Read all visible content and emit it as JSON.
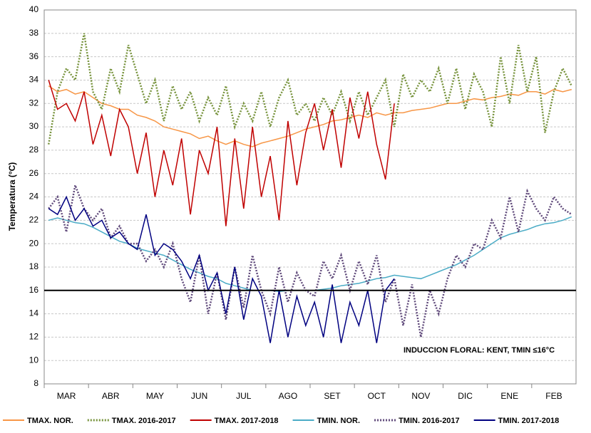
{
  "chart_data": {
    "type": "line",
    "y_label": "Temperatura (°C)",
    "annotation": "INDUCCION FLORAL: KENT, TMIN ≤16°C",
    "hline": 16,
    "categories": [
      null,
      null,
      "MAR",
      null,
      null,
      null,
      null,
      "ABR",
      null,
      null,
      null,
      null,
      "MAY",
      null,
      null,
      null,
      null,
      "JUN",
      null,
      null,
      null,
      null,
      "JUL",
      null,
      null,
      null,
      null,
      "AGO",
      null,
      null,
      null,
      null,
      "SET",
      null,
      null,
      null,
      null,
      "OCT",
      null,
      null,
      null,
      null,
      "NOV",
      null,
      null,
      null,
      null,
      "DIC",
      null,
      null,
      null,
      null,
      "ENE",
      null,
      null,
      null,
      null,
      "FEB",
      null,
      null
    ],
    "ylim": [
      8,
      40
    ],
    "yticks": [
      8,
      10,
      12,
      14,
      16,
      18,
      20,
      22,
      24,
      26,
      28,
      30,
      32,
      34,
      36,
      38,
      40
    ],
    "grid": true,
    "series": [
      {
        "name": "TMAX. NOR.",
        "color": "#f79646",
        "dash": "solid",
        "values": [
          33.5,
          33,
          33.2,
          32.8,
          33,
          32.5,
          32,
          31.8,
          31.5,
          31.5,
          31,
          30.8,
          30.5,
          30,
          29.8,
          29.6,
          29.4,
          29,
          29.2,
          28.8,
          28.5,
          28.8,
          28.5,
          28.3,
          28.6,
          28.8,
          29,
          29.2,
          29.5,
          29.8,
          30,
          30.2,
          30.5,
          30.6,
          30.8,
          31,
          30.8,
          31.2,
          31,
          31.2,
          31.2,
          31.4,
          31.5,
          31.6,
          31.8,
          32,
          32,
          32.2,
          32.4,
          32.3,
          32.5,
          32.6,
          32.8,
          32.7,
          33,
          33,
          32.8,
          33.2,
          33,
          33.2
        ]
      },
      {
        "name": "TMAX. 2016-2017",
        "color": "#77933c",
        "dash": "dotted",
        "values": [
          28.5,
          33,
          35,
          34,
          38,
          33,
          31.5,
          35,
          33,
          37,
          34.5,
          32,
          34,
          30.5,
          33.5,
          31.5,
          33,
          30.5,
          32.5,
          31,
          33.5,
          30,
          32,
          30.5,
          33,
          30,
          32.5,
          34,
          31,
          32,
          30.5,
          32.5,
          31,
          33,
          30.5,
          33,
          31,
          32.5,
          34,
          30,
          34.5,
          32.5,
          34,
          33,
          35,
          32,
          35,
          31.5,
          34.5,
          33,
          30,
          36,
          32,
          37,
          33,
          36,
          29.5,
          33,
          35,
          33.5
        ]
      },
      {
        "name": "TMAX. 2017-2018",
        "color": "#c00000",
        "dash": "solid",
        "values": [
          34,
          31.5,
          32,
          30.5,
          33,
          28.5,
          31,
          27.5,
          31.5,
          30,
          26,
          29.5,
          24,
          28,
          25,
          29,
          22.5,
          28,
          26,
          30,
          21.5,
          29,
          23,
          30,
          24,
          27.5,
          22,
          30.5,
          25,
          29.5,
          32,
          28,
          31.5,
          26.5,
          32.5,
          29,
          33,
          28.5,
          25.5,
          32,
          null,
          null,
          null,
          null,
          null,
          null,
          null,
          null,
          null,
          null,
          null,
          null,
          null,
          null,
          null,
          null,
          null,
          null,
          null,
          null
        ]
      },
      {
        "name": "TMIN. NOR.",
        "color": "#4bacc6",
        "dash": "solid",
        "values": [
          22,
          22.2,
          22,
          21.8,
          21.7,
          21.4,
          21,
          20.6,
          20.2,
          20,
          19.6,
          19.4,
          19.2,
          19,
          18.6,
          18.2,
          17.8,
          17.5,
          17.2,
          17,
          16.6,
          16.4,
          16.2,
          16,
          16,
          16,
          15.9,
          16,
          16,
          16,
          16,
          16.1,
          16.2,
          16.4,
          16.5,
          16.6,
          16.8,
          17,
          17.1,
          17.3,
          17.2,
          17.1,
          17,
          17.3,
          17.6,
          17.9,
          18.2,
          18.6,
          19,
          19.5,
          20,
          20.5,
          20.8,
          21,
          21.2,
          21.5,
          21.7,
          21.8,
          22,
          22.3
        ]
      },
      {
        "name": "TMIN. 2016-2017",
        "color": "#604a7b",
        "dash": "dotted",
        "values": [
          23,
          24,
          21,
          25,
          23,
          22,
          23,
          20.5,
          21.5,
          20,
          20,
          18.5,
          19.5,
          18,
          20,
          17,
          15,
          19,
          14,
          17.5,
          13.5,
          18,
          14.5,
          19,
          16,
          14,
          18,
          15,
          17.5,
          16,
          15.5,
          18.5,
          17,
          19,
          16,
          18.5,
          16.5,
          19,
          15,
          17,
          13,
          16.5,
          12,
          16,
          14,
          17,
          19,
          18,
          20,
          19.5,
          22,
          20.5,
          24,
          21,
          24.5,
          23,
          22,
          24,
          23,
          22.5
        ]
      },
      {
        "name": "TMIN. 2017-2018",
        "color": "#000080",
        "dash": "solid",
        "values": [
          23,
          22.5,
          24,
          22,
          23,
          21.5,
          22,
          20.5,
          21,
          20,
          19.5,
          22.5,
          19,
          20,
          19.5,
          18.5,
          17,
          19,
          16,
          17.5,
          14,
          18,
          13.5,
          17,
          15.5,
          11.5,
          16,
          12,
          15.5,
          13,
          15,
          12,
          16.5,
          11.5,
          15,
          13,
          16,
          11.5,
          16,
          17,
          null,
          null,
          null,
          null,
          null,
          null,
          null,
          null,
          null,
          null,
          null,
          null,
          null,
          null,
          null,
          null,
          null,
          null,
          null,
          null
        ]
      }
    ]
  }
}
